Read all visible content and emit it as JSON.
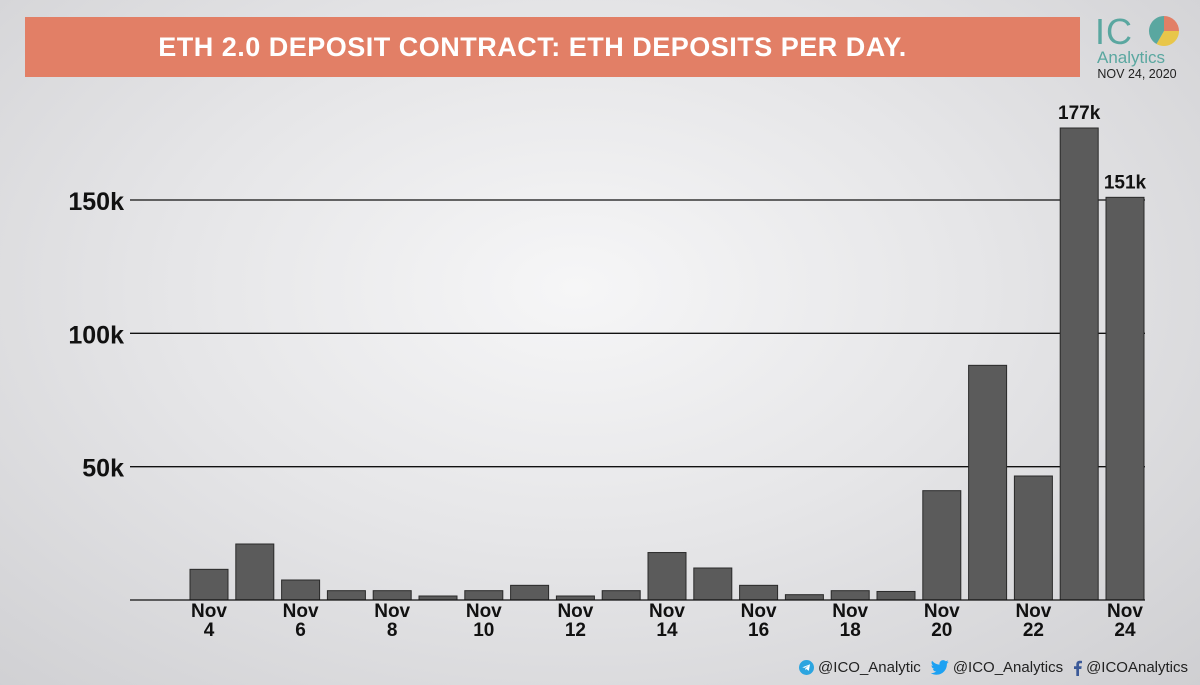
{
  "header": {
    "title": "ETH 2.0 DEPOSIT CONTRACT: ETH DEPOSITS PER DAY."
  },
  "logo": {
    "word": "IC",
    "sub": "Analytics",
    "date": "NOV 24, 2020"
  },
  "chart_data": {
    "type": "bar",
    "title": "ETH 2.0 DEPOSIT CONTRACT: ETH DEPOSITS PER DAY.",
    "categories": [
      "Nov 4",
      "Nov 5",
      "Nov 6",
      "Nov 7",
      "Nov 8",
      "Nov 9",
      "Nov 10",
      "Nov 11",
      "Nov 12",
      "Nov 13",
      "Nov 14",
      "Nov 15",
      "Nov 16",
      "Nov 17",
      "Nov 18",
      "Nov 19",
      "Nov 20",
      "Nov 21",
      "Nov 22",
      "Nov 23",
      "Nov 24"
    ],
    "values": [
      11500,
      21000,
      7500,
      3500,
      3500,
      1500,
      3500,
      5500,
      1500,
      3500,
      17800,
      12000,
      5500,
      2000,
      3500,
      3200,
      41000,
      88000,
      46500,
      177000,
      151000
    ],
    "xtick_labels": [
      {
        "index": 0,
        "line1": "Nov",
        "line2": "4"
      },
      {
        "index": 2,
        "line1": "Nov",
        "line2": "6"
      },
      {
        "index": 4,
        "line1": "Nov",
        "line2": "8"
      },
      {
        "index": 6,
        "line1": "Nov",
        "line2": "10"
      },
      {
        "index": 8,
        "line1": "Nov",
        "line2": "12"
      },
      {
        "index": 10,
        "line1": "Nov",
        "line2": "14"
      },
      {
        "index": 12,
        "line1": "Nov",
        "line2": "16"
      },
      {
        "index": 14,
        "line1": "Nov",
        "line2": "18"
      },
      {
        "index": 16,
        "line1": "Nov",
        "line2": "20"
      },
      {
        "index": 18,
        "line1": "Nov",
        "line2": "22"
      },
      {
        "index": 20,
        "line1": "Nov",
        "line2": "24"
      }
    ],
    "yticks": [
      {
        "value": 50000,
        "label": "50k"
      },
      {
        "value": 100000,
        "label": "100k"
      },
      {
        "value": 150000,
        "label": "150k"
      }
    ],
    "data_labels": [
      {
        "index": 19,
        "text": "177k"
      },
      {
        "index": 20,
        "text": "151k"
      }
    ],
    "ylim": [
      0,
      177000
    ],
    "grid": true,
    "bar_color": "#5b5b5b"
  },
  "footer": {
    "telegram": "@ICO_Analytic",
    "twitter": "@ICO_Analytics",
    "facebook": "@ICOAnalytics"
  },
  "colors": {
    "banner": "#e27f66",
    "brand_teal": "#5aa7a0"
  }
}
